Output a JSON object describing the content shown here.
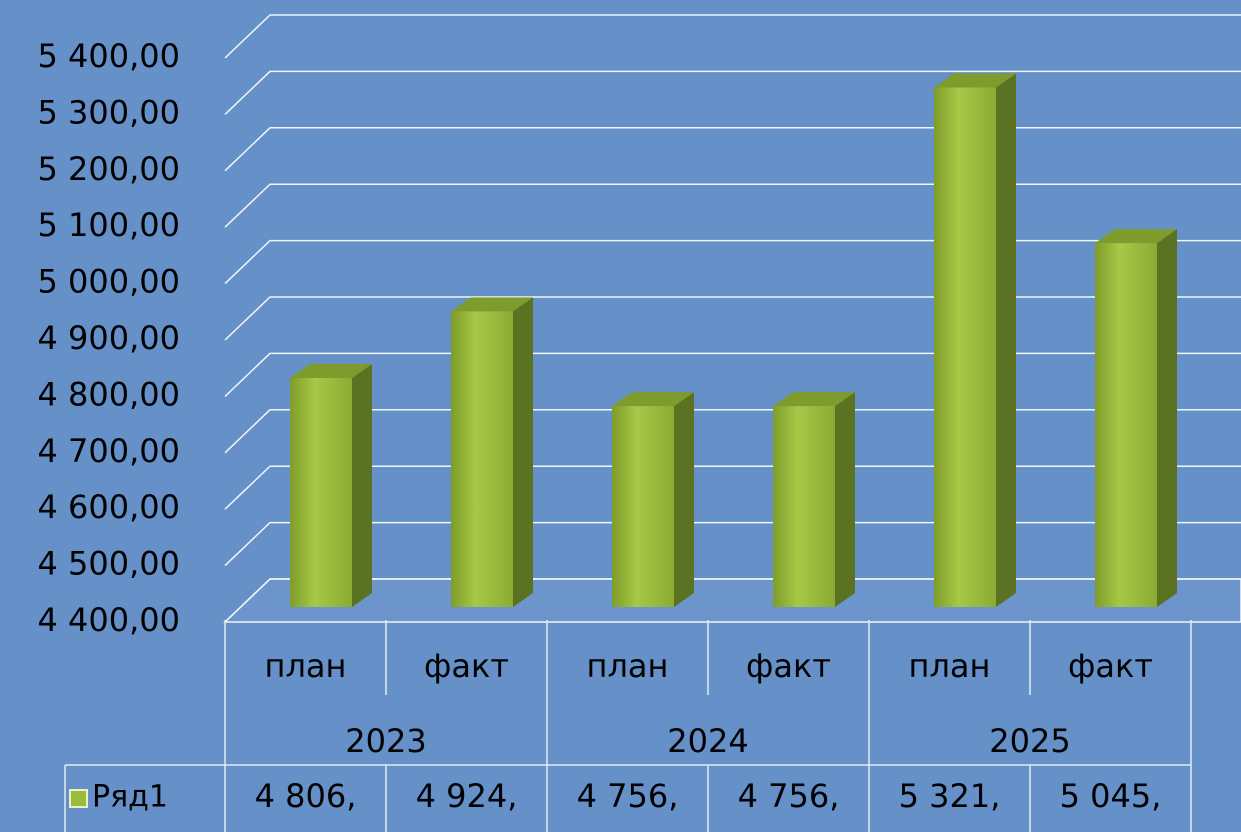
{
  "chart_data": {
    "type": "bar3d",
    "categories": [
      "план",
      "факт",
      "план",
      "факт",
      "план",
      "факт"
    ],
    "groups": [
      "2023",
      "2024",
      "2025"
    ],
    "series": [
      {
        "name": "Ряд1",
        "color": "#9bbb3b",
        "values": [
          4806,
          4924,
          4756,
          4756,
          5321,
          5045
        ],
        "value_labels": [
          "4 806,",
          "4 924,",
          "4 756,",
          "4 756,",
          "5 321,",
          "5 045,"
        ]
      }
    ],
    "ylim": [
      4400,
      5400
    ],
    "yticks": [
      {
        "value": 4400,
        "label": "4 400,00"
      },
      {
        "value": 4500,
        "label": "4 500,00"
      },
      {
        "value": 4600,
        "label": "4 600,00"
      },
      {
        "value": 4700,
        "label": "4 700,00"
      },
      {
        "value": 4800,
        "label": "4 800,00"
      },
      {
        "value": 4900,
        "label": "4 900,00"
      },
      {
        "value": 5000,
        "label": "5 000,00"
      },
      {
        "value": 5100,
        "label": "5 100,00"
      },
      {
        "value": 5200,
        "label": "5 200,00"
      },
      {
        "value": 5300,
        "label": "5 300,00"
      },
      {
        "value": 5400,
        "label": "5 400,00"
      }
    ],
    "grid": true,
    "legend": "table"
  }
}
